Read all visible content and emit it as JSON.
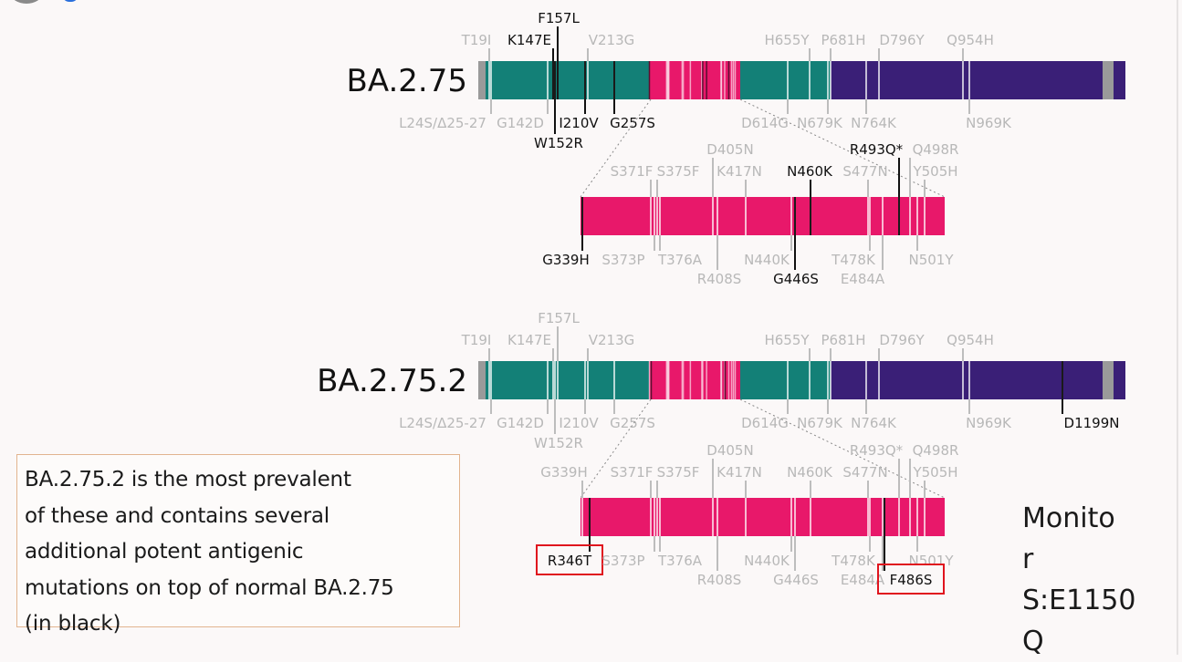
{
  "colors": {
    "teal": "#138077",
    "pink": "#e8186a",
    "purple": "#3a1f77",
    "gray_domain": "#9a9a9a",
    "mutation_gray": "#bdbdbd",
    "mutation_black": "#111111",
    "highlight_box": "#e0141e",
    "note_border": "#e2b48f"
  },
  "variants": [
    {
      "name": "BA.2.75",
      "spike_mutations": [
        {
          "label": "T19I",
          "style": "gray"
        },
        {
          "label": "K147E",
          "style": "black"
        },
        {
          "label": "F157L",
          "style": "black"
        },
        {
          "label": "V213G",
          "style": "gray"
        },
        {
          "label": "H655Y",
          "style": "gray"
        },
        {
          "label": "P681H",
          "style": "gray"
        },
        {
          "label": "D796Y",
          "style": "gray"
        },
        {
          "label": "Q954H",
          "style": "gray"
        },
        {
          "label": "L24S/Δ25-27",
          "style": "gray"
        },
        {
          "label": "G142D",
          "style": "gray"
        },
        {
          "label": "W152R",
          "style": "black"
        },
        {
          "label": "I210V",
          "style": "black"
        },
        {
          "label": "G257S",
          "style": "black"
        },
        {
          "label": "D614G",
          "style": "gray"
        },
        {
          "label": "N679K",
          "style": "gray"
        },
        {
          "label": "N764K",
          "style": "gray"
        },
        {
          "label": "N969K",
          "style": "gray"
        }
      ],
      "rbd_mutations": [
        {
          "label": "D405N",
          "style": "gray"
        },
        {
          "label": "R493Q*",
          "style": "black"
        },
        {
          "label": "Q498R",
          "style": "gray"
        },
        {
          "label": "S371F",
          "style": "gray"
        },
        {
          "label": "S375F",
          "style": "gray"
        },
        {
          "label": "K417N",
          "style": "gray"
        },
        {
          "label": "N460K",
          "style": "black"
        },
        {
          "label": "S477N",
          "style": "gray"
        },
        {
          "label": "Y505H",
          "style": "gray"
        },
        {
          "label": "G339H",
          "style": "black"
        },
        {
          "label": "S373P",
          "style": "gray"
        },
        {
          "label": "T376A",
          "style": "gray"
        },
        {
          "label": "N440K",
          "style": "gray"
        },
        {
          "label": "T478K",
          "style": "gray"
        },
        {
          "label": "N501Y",
          "style": "gray"
        },
        {
          "label": "R408S",
          "style": "gray"
        },
        {
          "label": "G446S",
          "style": "black"
        },
        {
          "label": "E484A",
          "style": "gray"
        }
      ]
    },
    {
      "name": "BA.2.75.2",
      "spike_mutations": [
        {
          "label": "T19I",
          "style": "gray"
        },
        {
          "label": "K147E",
          "style": "gray"
        },
        {
          "label": "F157L",
          "style": "gray"
        },
        {
          "label": "V213G",
          "style": "gray"
        },
        {
          "label": "H655Y",
          "style": "gray"
        },
        {
          "label": "P681H",
          "style": "gray"
        },
        {
          "label": "D796Y",
          "style": "gray"
        },
        {
          "label": "Q954H",
          "style": "gray"
        },
        {
          "label": "L24S/Δ25-27",
          "style": "gray"
        },
        {
          "label": "G142D",
          "style": "gray"
        },
        {
          "label": "W152R",
          "style": "gray"
        },
        {
          "label": "I210V",
          "style": "gray"
        },
        {
          "label": "G257S",
          "style": "gray"
        },
        {
          "label": "D614G",
          "style": "gray"
        },
        {
          "label": "N679K",
          "style": "gray"
        },
        {
          "label": "N764K",
          "style": "gray"
        },
        {
          "label": "N969K",
          "style": "gray"
        },
        {
          "label": "D1199N",
          "style": "black"
        }
      ],
      "rbd_mutations": [
        {
          "label": "D405N",
          "style": "gray"
        },
        {
          "label": "R493Q*",
          "style": "gray"
        },
        {
          "label": "Q498R",
          "style": "gray"
        },
        {
          "label": "G339H",
          "style": "gray"
        },
        {
          "label": "S371F",
          "style": "gray"
        },
        {
          "label": "S375F",
          "style": "gray"
        },
        {
          "label": "K417N",
          "style": "gray"
        },
        {
          "label": "N460K",
          "style": "gray"
        },
        {
          "label": "S477N",
          "style": "gray"
        },
        {
          "label": "Y505H",
          "style": "gray"
        },
        {
          "label": "R346T",
          "style": "black",
          "highlighted": true
        },
        {
          "label": "S373P",
          "style": "gray"
        },
        {
          "label": "T376A",
          "style": "gray"
        },
        {
          "label": "N440K",
          "style": "gray"
        },
        {
          "label": "T478K",
          "style": "gray"
        },
        {
          "label": "N501Y",
          "style": "gray"
        },
        {
          "label": "R408S",
          "style": "gray"
        },
        {
          "label": "G446S",
          "style": "gray"
        },
        {
          "label": "E484A",
          "style": "gray"
        },
        {
          "label": "F486S",
          "style": "black",
          "highlighted": true
        }
      ]
    }
  ],
  "note": {
    "lines": [
      "BA.2.75.2 is the most prevalent",
      "of these and contains several",
      "additional potent antigenic",
      "mutations on top of normal BA.2.75",
      "(in black)"
    ]
  },
  "monitor": {
    "lines": [
      "Monito",
      "r",
      "S:E1150",
      "Q"
    ]
  }
}
